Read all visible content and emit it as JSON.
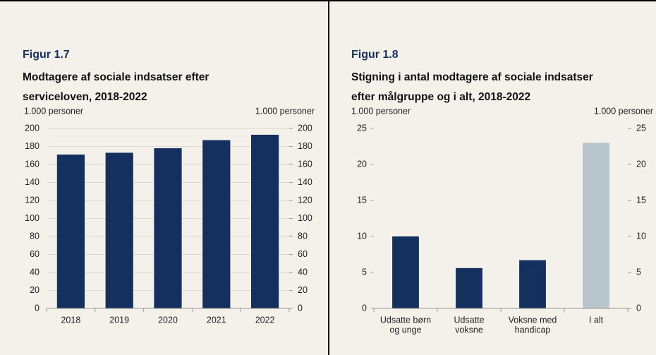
{
  "chart_data": [
    {
      "type": "bar",
      "figure_label": "Figur 1.7",
      "title": [
        "Modtagere af sociale indsatser efter",
        "serviceloven, 2018-2022"
      ],
      "ylabel": "1.000 personer",
      "y2label": "1.000 personer",
      "categories": [
        [
          "2018"
        ],
        [
          "2019"
        ],
        [
          "2020"
        ],
        [
          "2021"
        ],
        [
          "2022"
        ]
      ],
      "values": [
        171,
        173,
        178,
        187,
        193
      ],
      "colors": [
        "#14305f",
        "#14305f",
        "#14305f",
        "#14305f",
        "#14305f"
      ],
      "ylim": [
        0,
        200
      ],
      "yticks": [
        0,
        20,
        40,
        60,
        80,
        100,
        120,
        140,
        160,
        180,
        200
      ],
      "y2lim": [
        0,
        200
      ],
      "y2ticks": [
        0,
        20,
        40,
        60,
        80,
        100,
        120,
        140,
        160,
        180,
        200
      ],
      "grid": true
    },
    {
      "type": "bar",
      "figure_label": "Figur 1.8",
      "title": [
        "Stigning i antal modtagere af sociale indsatser",
        "efter målgruppe og i alt, 2018-2022"
      ],
      "ylabel": "1.000 personer",
      "y2label": "1.000 personer",
      "categories": [
        [
          "Udsatte børn",
          "og unge"
        ],
        [
          "Udsatte",
          "voksne"
        ],
        [
          "Voksne med",
          "handicap"
        ],
        [
          "I alt"
        ]
      ],
      "values": [
        10,
        5.6,
        6.7,
        23
      ],
      "colors": [
        "#14305f",
        "#14305f",
        "#14305f",
        "#b7c5ca"
      ],
      "ylim": [
        0,
        25
      ],
      "yticks": [
        0,
        5,
        10,
        15,
        20,
        25
      ],
      "y2lim": [
        0,
        25
      ],
      "y2ticks": [
        0,
        5,
        10,
        15,
        20,
        25
      ],
      "grid": false
    }
  ]
}
